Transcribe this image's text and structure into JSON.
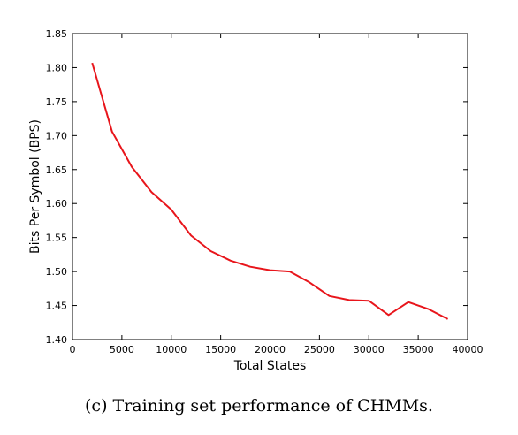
{
  "caption": "(c) Training set performance of CHMMs.",
  "chart_data": {
    "type": "line",
    "xlabel": "Total States",
    "ylabel": "Bits Per Symbol (BPS)",
    "xlim": [
      0,
      40000
    ],
    "ylim": [
      1.4,
      1.85
    ],
    "xticks": [
      0,
      5000,
      10000,
      15000,
      20000,
      25000,
      30000,
      35000,
      40000
    ],
    "yticks": [
      1.4,
      1.45,
      1.5,
      1.55,
      1.6,
      1.65,
      1.7,
      1.75,
      1.8,
      1.85
    ],
    "xtick_labels": [
      "0",
      "5000",
      "10000",
      "15000",
      "20000",
      "25000",
      "30000",
      "35000",
      "40000"
    ],
    "ytick_labels": [
      "1.40",
      "1.45",
      "1.50",
      "1.55",
      "1.60",
      "1.65",
      "1.70",
      "1.75",
      "1.80",
      "1.85"
    ],
    "grid": false,
    "series": [
      {
        "color": "#e8151b",
        "x": [
          2000,
          4000,
          6000,
          8000,
          10000,
          12000,
          14000,
          16000,
          18000,
          20000,
          22000,
          24000,
          26000,
          28000,
          30000,
          32000,
          34000,
          36000,
          38000
        ],
        "y": [
          1.807,
          1.706,
          1.654,
          1.617,
          1.591,
          1.553,
          1.53,
          1.516,
          1.507,
          1.502,
          1.5,
          1.484,
          1.464,
          1.458,
          1.457,
          1.436,
          1.455,
          1.445,
          1.43
        ]
      }
    ]
  }
}
